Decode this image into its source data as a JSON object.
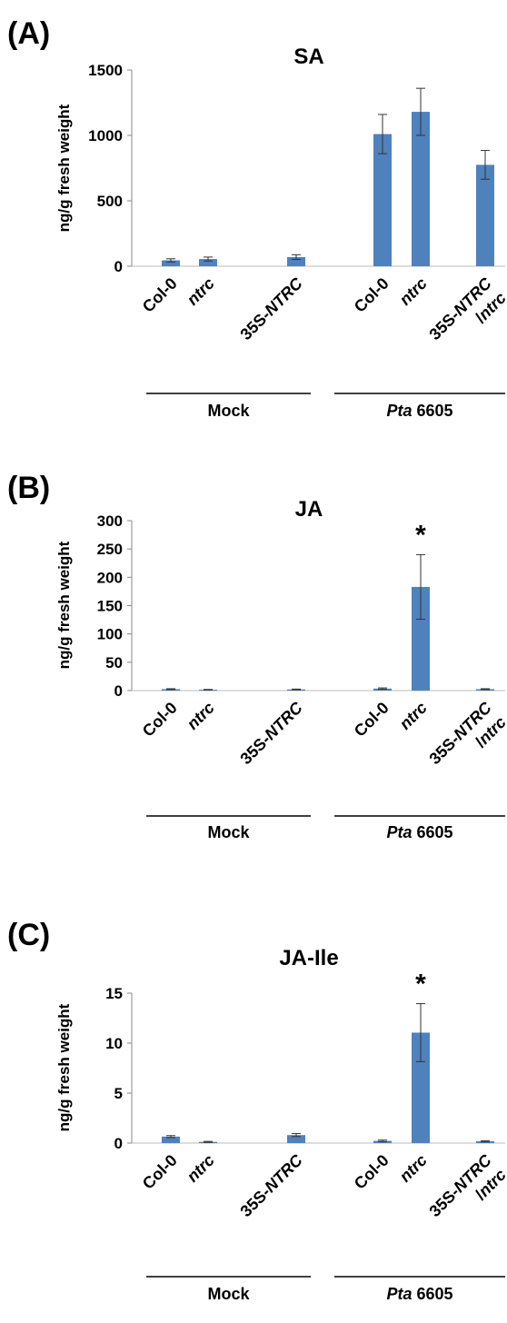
{
  "chart_data": [
    {
      "panel": "(A)",
      "type": "bar",
      "title": "SA",
      "ylabel": "ng/g fresh weight",
      "ylim": [
        0,
        1500
      ],
      "yticks": [
        "0",
        "500",
        "1000",
        "1500"
      ],
      "categories": [
        {
          "label": "Col-0",
          "italic": false
        },
        {
          "label": "ntrc",
          "italic": true
        },
        {
          "label": "35S-NTRC",
          "label_parts": [
            {
              "text": "35S-",
              "italic": false
            },
            {
              "text": "NTRC",
              "italic": true
            }
          ]
        },
        {
          "label": "Col-0",
          "italic": false
        },
        {
          "label": "ntrc",
          "italic": true
        },
        {
          "label": "35S-NTRC/ntrc",
          "label_parts": [
            {
              "text": "35S-",
              "italic": false
            },
            {
              "text": "NTRC",
              "italic": true
            }
          ],
          "label_line2": [
            {
              "text": "/",
              "italic": false
            },
            {
              "text": "ntrc",
              "italic": true
            }
          ]
        }
      ],
      "values": [
        45,
        55,
        70,
        1010,
        1180,
        775
      ],
      "errors": [
        12,
        15,
        18,
        150,
        180,
        110
      ],
      "annotations": [
        "",
        "",
        "",
        "",
        "",
        ""
      ],
      "groups": [
        {
          "label": "Mock",
          "parts": [
            {
              "text": "Mock",
              "italic": false
            }
          ]
        },
        {
          "label": "Pta 6605",
          "parts": [
            {
              "text": "Pta",
              "italic": true
            },
            {
              "text": " 6605",
              "italic": false
            }
          ]
        }
      ],
      "bar_color": "#4f81bd"
    },
    {
      "panel": "(B)",
      "type": "bar",
      "title": "JA",
      "ylabel": "ng/g fresh weight",
      "ylim": [
        0,
        300
      ],
      "yticks": [
        "0",
        "50",
        "100",
        "150",
        "200",
        "250",
        "300"
      ],
      "categories": [
        {
          "label": "Col-0",
          "italic": false
        },
        {
          "label": "ntrc",
          "italic": true
        },
        {
          "label": "35S-NTRC",
          "label_parts": [
            {
              "text": "35S-",
              "italic": false
            },
            {
              "text": "NTRC",
              "italic": true
            }
          ]
        },
        {
          "label": "Col-0",
          "italic": false
        },
        {
          "label": "ntrc",
          "italic": true
        },
        {
          "label": "35S-NTRC/ntrc",
          "label_parts": [
            {
              "text": "35S-",
              "italic": false
            },
            {
              "text": "NTRC",
              "italic": true
            }
          ],
          "label_line2": [
            {
              "text": "/",
              "italic": false
            },
            {
              "text": "ntrc",
              "italic": true
            }
          ]
        }
      ],
      "values": [
        2.5,
        1.5,
        2.0,
        3.5,
        183,
        2.5
      ],
      "errors": [
        0.8,
        0.5,
        0.6,
        1.2,
        57,
        0.8
      ],
      "annotations": [
        "",
        "",
        "",
        "",
        "*",
        ""
      ],
      "groups": [
        {
          "label": "Mock",
          "parts": [
            {
              "text": "Mock",
              "italic": false
            }
          ]
        },
        {
          "label": "Pta 6605",
          "parts": [
            {
              "text": "Pta",
              "italic": true
            },
            {
              "text": " 6605",
              "italic": false
            }
          ]
        }
      ],
      "bar_color": "#4f81bd"
    },
    {
      "panel": "(C)",
      "type": "bar",
      "title": "JA-Ile",
      "ylabel": "ng/g fresh weight",
      "ylim": [
        0,
        15
      ],
      "yticks": [
        "0",
        "5",
        "10",
        "15"
      ],
      "categories": [
        {
          "label": "Col-0",
          "italic": false
        },
        {
          "label": "ntrc",
          "italic": true
        },
        {
          "label": "35S-NTRC",
          "label_parts": [
            {
              "text": "35S-",
              "italic": false
            },
            {
              "text": "NTRC",
              "italic": true
            }
          ]
        },
        {
          "label": "Col-0",
          "italic": false
        },
        {
          "label": "ntrc",
          "italic": true
        },
        {
          "label": "35S-NTRC/ntrc",
          "label_parts": [
            {
              "text": "35S-",
              "italic": false
            },
            {
              "text": "NTRC",
              "italic": true
            }
          ],
          "label_line2": [
            {
              "text": "/",
              "italic": false
            },
            {
              "text": "ntrc",
              "italic": true
            }
          ]
        }
      ],
      "values": [
        0.65,
        0.12,
        0.8,
        0.22,
        11.05,
        0.18
      ],
      "errors": [
        0.1,
        0.05,
        0.15,
        0.08,
        2.9,
        0.06
      ],
      "annotations": [
        "",
        "",
        "",
        "",
        "*",
        ""
      ],
      "groups": [
        {
          "label": "Mock",
          "parts": [
            {
              "text": "Mock",
              "italic": false
            }
          ]
        },
        {
          "label": "Pta 6605",
          "parts": [
            {
              "text": "Pta",
              "italic": true
            },
            {
              "text": " 6605",
              "italic": false
            }
          ]
        }
      ],
      "bar_color": "#4f81bd"
    }
  ]
}
